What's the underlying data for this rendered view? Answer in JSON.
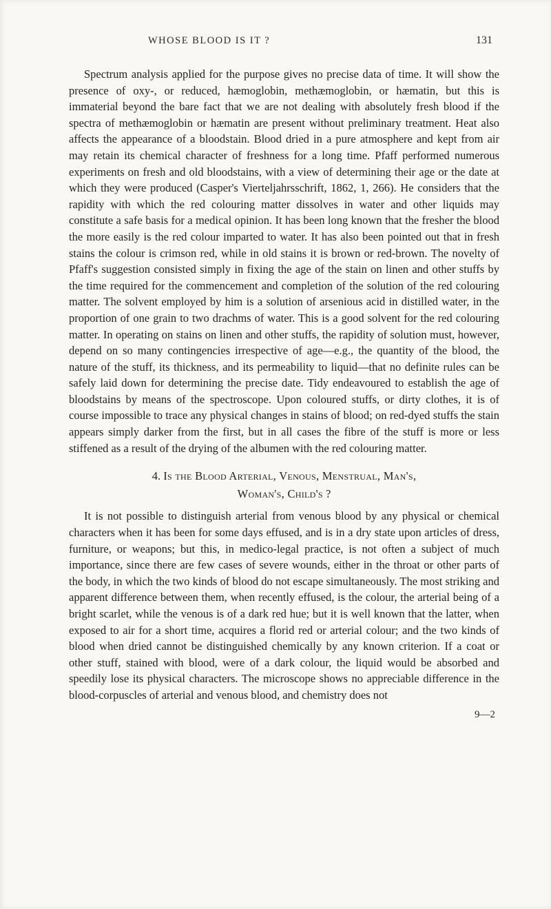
{
  "page": {
    "running_head": "WHOSE BLOOD IS IT ?",
    "page_number": "131",
    "signature": "9—2",
    "background_color": "#f9f8f2",
    "text_color": "#232320",
    "font_family": "Georgia, Times New Roman, serif",
    "base_font_size_pt": 12,
    "line_height": 1.43
  },
  "paragraphs": {
    "p1": "Spectrum analysis applied for the purpose gives no precise data of time. It will show the presence of oxy-, or reduced, hæmoglobin, methæmoglobin, or hæmatin, but this is immaterial beyond the bare fact that we are not dealing with absolutely fresh blood if the spectra of methæmoglobin or hæmatin are present without preliminary treatment. Heat also affects the appearance of a bloodstain. Blood dried in a pure atmosphere and kept from air may retain its chemical character of freshness for a long time. Pfaff performed numerous experiments on fresh and old bloodstains, with a view of determining their age or the date at which they were produced (Casper's Vierteljahrsschrift, 1862, 1, 266). He considers that the rapidity with which the red colouring matter dissolves in water and other liquids may constitute a safe basis for a medical opinion. It has been long known that the fresher the blood the more easily is the red colour imparted to water. It has also been pointed out that in fresh stains the colour is crimson red, while in old stains it is brown or red-brown. The novelty of Pfaff's suggestion consisted simply in fixing the age of the stain on linen and other stuffs by the time required for the commencement and completion of the solution of the red colouring matter. The solvent employed by him is a solution of arsenious acid in distilled water, in the proportion of one grain to two drachms of water. This is a good solvent for the red colouring matter. In operating on stains on linen and other stuffs, the rapidity of solution must, however, depend on so many contingencies irrespective of age—e.g., the quantity of the blood, the nature of the stuff, its thickness, and its permeability to liquid—that no definite rules can be safely laid down for determining the precise date. Tidy endeavoured to establish the age of bloodstains by means of the spectroscope. Upon coloured stuffs, or dirty clothes, it is of course impossible to trace any physical changes in stains of blood; on red-dyed stuffs the stain appears simply darker from the first, but in all cases the fibre of the stuff is more or less stiffened as a result of the drying of the albumen with the red colouring matter.",
    "heading_line1_prefix": "4. ",
    "heading_line1_smallcaps": "Is the Blood Arterial, Venous, Menstrual, Man's,",
    "heading_line2_smallcaps": "Woman's, Child's",
    "heading_line2_suffix": " ?",
    "p2": "It is not possible to distinguish arterial from venous blood by any physical or chemical characters when it has been for some days effused, and is in a dry state upon articles of dress, furniture, or weapons; but this, in medico-legal practice, is not often a subject of much importance, since there are few cases of severe wounds, either in the throat or other parts of the body, in which the two kinds of blood do not escape simultaneously. The most striking and apparent difference between them, when recently effused, is the colour, the arterial being of a bright scarlet, while the venous is of a dark red hue; but it is well known that the latter, when exposed to air for a short time, acquires a florid red or arterial colour; and the two kinds of blood when dried cannot be distinguished chemically by any known criterion. If a coat or other stuff, stained with blood, were of a dark colour, the liquid would be absorbed and speedily lose its physical characters. The microscope shows no appreciable difference in the blood-corpuscles of arterial and venous blood, and chemistry does not"
  }
}
